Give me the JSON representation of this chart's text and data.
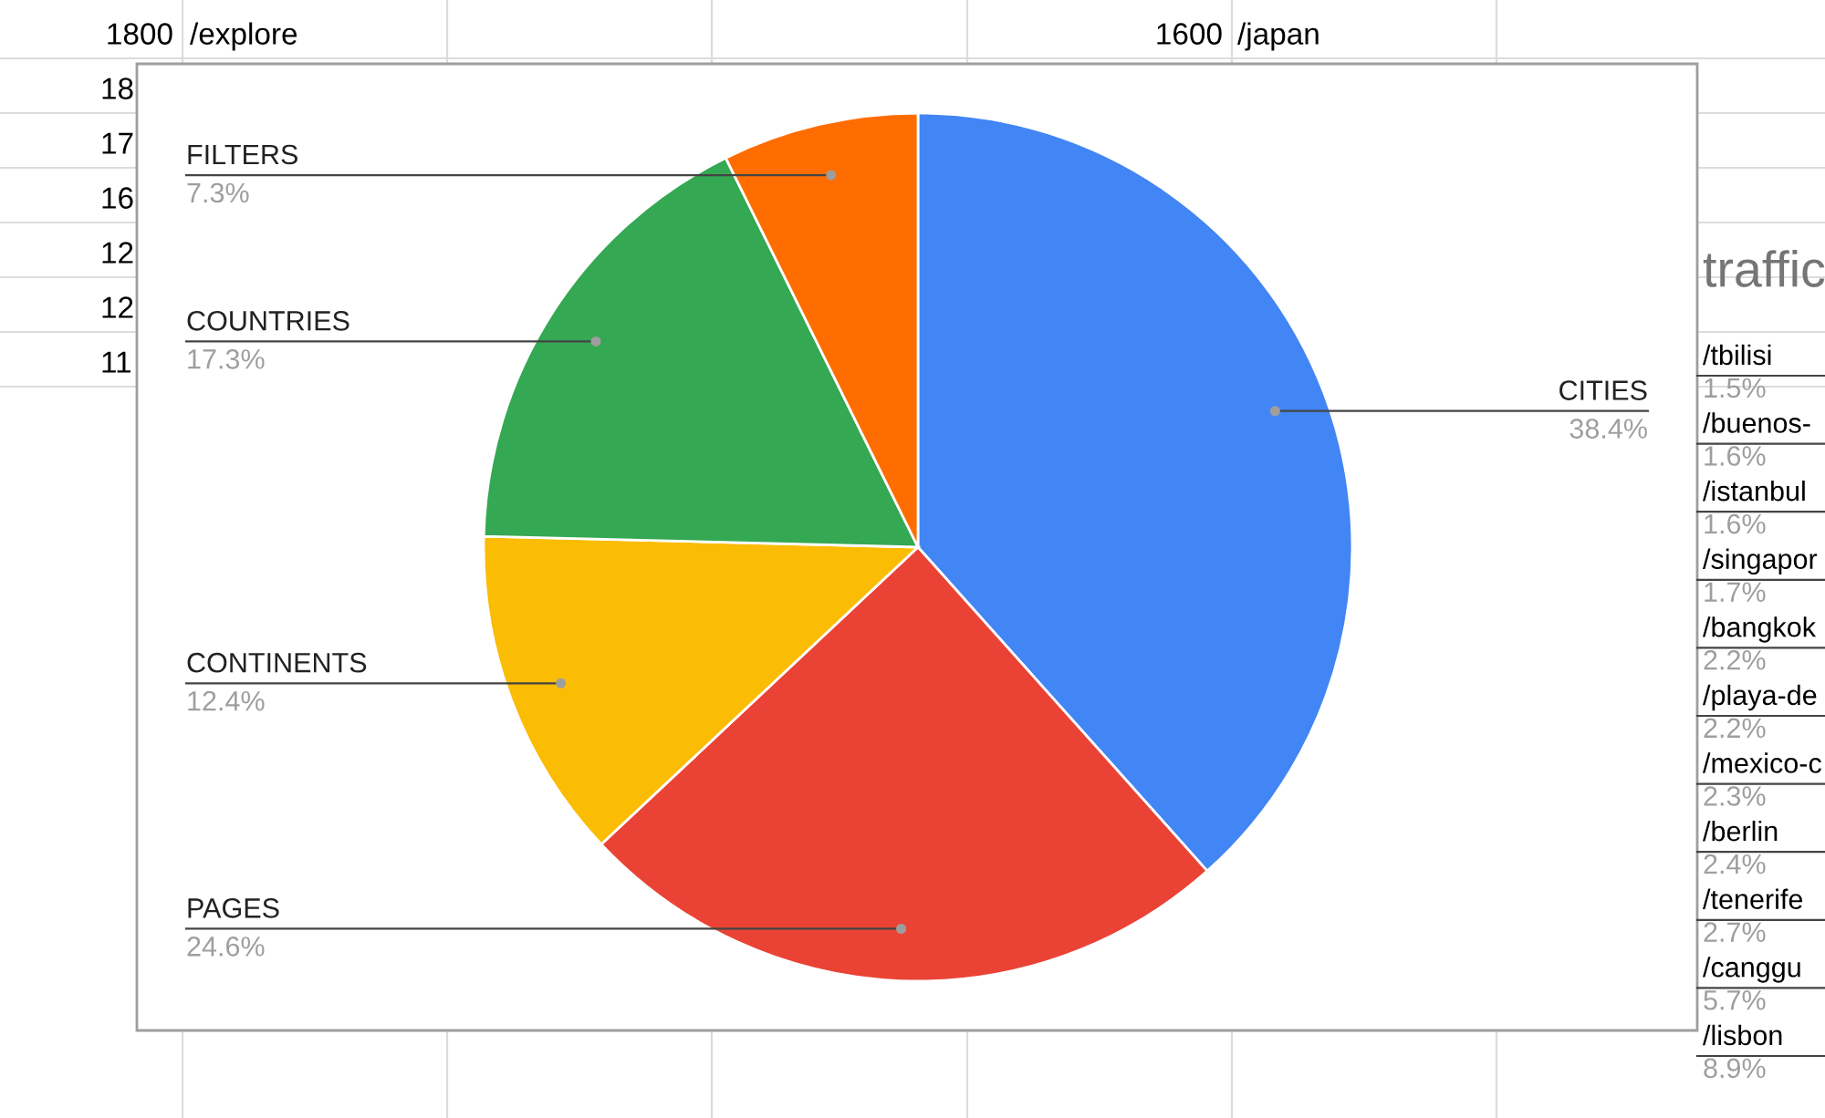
{
  "chart_data": [
    {
      "type": "other",
      "annotations": [
        "1800",
        "/explore",
        "1600",
        "/japan",
        "18",
        "17",
        "16",
        "12",
        "12",
        "11"
      ]
    },
    {
      "type": "pie",
      "categories": [
        "CITIES",
        "PAGES",
        "CONTINENTS",
        "COUNTRIES",
        "FILTERS"
      ],
      "values": [
        38.4,
        24.6,
        12.4,
        17.3,
        7.3
      ],
      "colors": [
        "#4285f4",
        "#ea4335",
        "#fbbc04",
        "#34a853",
        "#ff6d01"
      ],
      "value_labels": [
        "38.4%",
        "24.6%",
        "12.4%",
        "17.3%",
        "7.3%"
      ],
      "legend": false
    },
    {
      "type": "other",
      "title": "traffic",
      "annotations": [
        "/tbilisi",
        "1.5%",
        "/buenos-",
        "1.6%",
        "/istanbul",
        "1.6%",
        "/singapor",
        "1.7%",
        "/bangkok",
        "2.2%",
        "/playa-de",
        "2.2%",
        "/mexico-c",
        "2.3%",
        "/berlin",
        "2.4%",
        "/tenerife",
        "2.7%",
        "/canggu",
        "5.7%",
        "/lisbon",
        "8.9%"
      ]
    }
  ]
}
